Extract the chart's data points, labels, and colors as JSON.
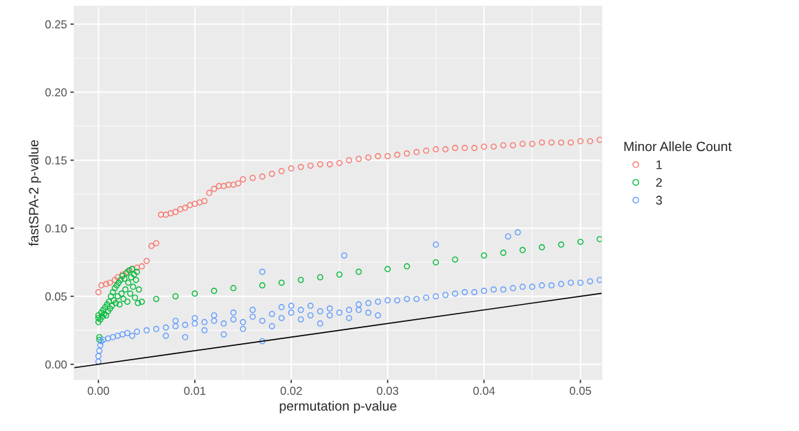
{
  "chart_data": {
    "type": "scatter",
    "xlabel": "permutation p-value",
    "ylabel": "fastSPA-2 p-value",
    "legend_title": "Minor Allele Count",
    "xlim": [
      -0.0025,
      0.0522
    ],
    "ylim": [
      -0.011,
      0.263
    ],
    "xticks": [
      {
        "value": 0,
        "label": "0.00"
      },
      0.01,
      0.02,
      0.03,
      0.04,
      0.05
    ],
    "yticks": [
      {
        "value": 0,
        "label": "0.00"
      },
      0.05,
      {
        "value": 0.1,
        "label": "0.10"
      },
      0.15,
      {
        "value": 0.2,
        "label": "0.20"
      },
      0.25
    ],
    "grid": true,
    "legend": "right",
    "marker": "circle",
    "series": [
      {
        "name": "1",
        "color": "#f8766d",
        "x": [
          0.0,
          0.0003,
          0.0008,
          0.0012,
          0.0017,
          0.002,
          0.0025,
          0.003,
          0.0035,
          0.004,
          0.0045,
          0.005,
          0.0055,
          0.006,
          0.0065,
          0.007,
          0.0075,
          0.008,
          0.0085,
          0.009,
          0.0095,
          0.01,
          0.0105,
          0.011,
          0.0115,
          0.012,
          0.0125,
          0.013,
          0.0135,
          0.014,
          0.0145,
          0.015,
          0.016,
          0.017,
          0.018,
          0.019,
          0.02,
          0.021,
          0.022,
          0.023,
          0.024,
          0.025,
          0.026,
          0.027,
          0.028,
          0.029,
          0.03,
          0.031,
          0.032,
          0.033,
          0.034,
          0.035,
          0.036,
          0.037,
          0.038,
          0.039,
          0.04,
          0.041,
          0.042,
          0.043,
          0.044,
          0.045,
          0.046,
          0.047,
          0.048,
          0.049,
          0.05,
          0.051,
          0.052
        ],
        "values": [
          0.053,
          0.058,
          0.059,
          0.06,
          0.062,
          0.064,
          0.066,
          0.068,
          0.07,
          0.071,
          0.072,
          0.076,
          0.087,
          0.089,
          0.11,
          0.11,
          0.111,
          0.112,
          0.114,
          0.115,
          0.117,
          0.118,
          0.119,
          0.12,
          0.126,
          0.129,
          0.131,
          0.131,
          0.132,
          0.132,
          0.133,
          0.136,
          0.137,
          0.138,
          0.14,
          0.142,
          0.144,
          0.145,
          0.146,
          0.147,
          0.147,
          0.148,
          0.15,
          0.151,
          0.152,
          0.153,
          0.153,
          0.154,
          0.155,
          0.156,
          0.157,
          0.158,
          0.158,
          0.159,
          0.159,
          0.159,
          0.16,
          0.16,
          0.161,
          0.161,
          0.162,
          0.162,
          0.163,
          0.163,
          0.163,
          0.163,
          0.164,
          0.164,
          0.165
        ]
      },
      {
        "name": "2",
        "color": "#00ba38",
        "x": [
          0.0,
          0.0,
          0.0,
          0.0001,
          0.0001,
          0.0002,
          0.0003,
          0.0004,
          0.0005,
          0.0006,
          0.0007,
          0.0008,
          0.0009,
          0.001,
          0.0011,
          0.0012,
          0.0013,
          0.0014,
          0.0015,
          0.0016,
          0.0017,
          0.0018,
          0.0019,
          0.002,
          0.0021,
          0.0022,
          0.0023,
          0.0024,
          0.0025,
          0.0026,
          0.0027,
          0.0028,
          0.0029,
          0.003,
          0.0031,
          0.0032,
          0.0033,
          0.0034,
          0.0035,
          0.0036,
          0.0037,
          0.0038,
          0.0039,
          0.004,
          0.0041,
          0.0042,
          0.0045,
          0.006,
          0.008,
          0.01,
          0.012,
          0.014,
          0.017,
          0.019,
          0.021,
          0.023,
          0.025,
          0.027,
          0.03,
          0.032,
          0.035,
          0.037,
          0.04,
          0.042,
          0.044,
          0.046,
          0.048,
          0.05,
          0.052
        ],
        "values": [
          0.031,
          0.034,
          0.036,
          0.02,
          0.018,
          0.033,
          0.038,
          0.035,
          0.04,
          0.037,
          0.042,
          0.036,
          0.044,
          0.039,
          0.046,
          0.041,
          0.05,
          0.043,
          0.053,
          0.047,
          0.056,
          0.045,
          0.058,
          0.05,
          0.06,
          0.044,
          0.062,
          0.052,
          0.065,
          0.048,
          0.063,
          0.055,
          0.067,
          0.046,
          0.06,
          0.069,
          0.052,
          0.064,
          0.07,
          0.057,
          0.066,
          0.049,
          0.062,
          0.068,
          0.045,
          0.055,
          0.046,
          0.048,
          0.05,
          0.052,
          0.054,
          0.056,
          0.058,
          0.06,
          0.062,
          0.064,
          0.066,
          0.068,
          0.07,
          0.072,
          0.075,
          0.077,
          0.08,
          0.082,
          0.084,
          0.086,
          0.088,
          0.09,
          0.092
        ]
      },
      {
        "name": "3",
        "color": "#619cff",
        "x": [
          0.0,
          0.0,
          0.0001,
          0.0002,
          0.0003,
          0.0005,
          0.001,
          0.0015,
          0.002,
          0.0025,
          0.003,
          0.0035,
          0.004,
          0.005,
          0.006,
          0.007,
          0.007,
          0.008,
          0.008,
          0.009,
          0.009,
          0.01,
          0.01,
          0.011,
          0.011,
          0.012,
          0.012,
          0.013,
          0.013,
          0.014,
          0.014,
          0.015,
          0.015,
          0.016,
          0.016,
          0.017,
          0.017,
          0.017,
          0.018,
          0.018,
          0.019,
          0.019,
          0.02,
          0.02,
          0.021,
          0.021,
          0.022,
          0.022,
          0.023,
          0.023,
          0.024,
          0.024,
          0.025,
          0.0255,
          0.026,
          0.026,
          0.027,
          0.027,
          0.028,
          0.028,
          0.029,
          0.029,
          0.03,
          0.031,
          0.032,
          0.033,
          0.034,
          0.035,
          0.035,
          0.036,
          0.037,
          0.038,
          0.039,
          0.04,
          0.041,
          0.042,
          0.0425,
          0.0435,
          0.043,
          0.044,
          0.045,
          0.046,
          0.047,
          0.048,
          0.049,
          0.05,
          0.051,
          0.052
        ],
        "values": [
          0.002,
          0.006,
          0.01,
          0.014,
          0.017,
          0.018,
          0.019,
          0.02,
          0.021,
          0.022,
          0.023,
          0.021,
          0.024,
          0.025,
          0.026,
          0.027,
          0.021,
          0.028,
          0.032,
          0.029,
          0.02,
          0.03,
          0.034,
          0.031,
          0.025,
          0.032,
          0.036,
          0.03,
          0.022,
          0.033,
          0.038,
          0.031,
          0.026,
          0.035,
          0.04,
          0.032,
          0.017,
          0.068,
          0.037,
          0.028,
          0.042,
          0.034,
          0.038,
          0.043,
          0.033,
          0.04,
          0.036,
          0.043,
          0.039,
          0.03,
          0.041,
          0.036,
          0.038,
          0.08,
          0.04,
          0.034,
          0.044,
          0.04,
          0.045,
          0.038,
          0.046,
          0.036,
          0.047,
          0.047,
          0.048,
          0.048,
          0.049,
          0.05,
          0.088,
          0.051,
          0.052,
          0.053,
          0.053,
          0.054,
          0.055,
          0.055,
          0.094,
          0.097,
          0.056,
          0.057,
          0.057,
          0.058,
          0.058,
          0.059,
          0.06,
          0.06,
          0.061,
          0.062
        ]
      },
      {
        "type": "line",
        "color": "#000000",
        "line_style": "solid",
        "marker": "none",
        "x": [
          -0.0025,
          0.0522
        ],
        "values": [
          -0.0025,
          0.0522
        ]
      }
    ]
  }
}
